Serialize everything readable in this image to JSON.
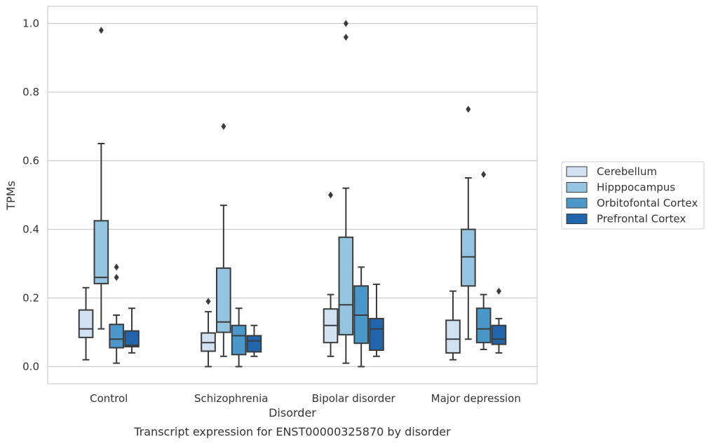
{
  "caption": "Transcript expression for ENST00000325870 by disorder",
  "chart_data": {
    "type": "box",
    "xlabel": "Disorder",
    "ylabel": "TPMs",
    "ylim": [
      -0.05,
      1.05
    ],
    "yticks": [
      0.0,
      0.2,
      0.4,
      0.6,
      0.8,
      1.0
    ],
    "ytick_labels": [
      "0.0",
      "0.2",
      "0.4",
      "0.6",
      "0.8",
      "1.0"
    ],
    "grid": "horizontal",
    "legend_position": "right",
    "categories": [
      "Control",
      "Schizophrenia",
      "Bipolar disorder",
      "Major depression"
    ],
    "series": [
      {
        "name": "Cerebellum",
        "color": "#d0e1f2",
        "boxes": [
          {
            "min": 0.02,
            "q1": 0.085,
            "median": 0.11,
            "q3": 0.165,
            "max": 0.23,
            "outliers": []
          },
          {
            "min": 0.0,
            "q1": 0.045,
            "median": 0.07,
            "q3": 0.098,
            "max": 0.16,
            "outliers": [
              0.19
            ]
          },
          {
            "min": 0.03,
            "q1": 0.07,
            "median": 0.12,
            "q3": 0.168,
            "max": 0.21,
            "outliers": [
              0.5
            ]
          },
          {
            "min": 0.02,
            "q1": 0.04,
            "median": 0.08,
            "q3": 0.135,
            "max": 0.22,
            "outliers": []
          }
        ]
      },
      {
        "name": "Hipppocampus",
        "color": "#94c4df",
        "boxes": [
          {
            "min": 0.11,
            "q1": 0.242,
            "median": 0.26,
            "q3": 0.425,
            "max": 0.65,
            "outliers": [
              0.98
            ]
          },
          {
            "min": 0.03,
            "q1": 0.1,
            "median": 0.13,
            "q3": 0.287,
            "max": 0.47,
            "outliers": [
              0.7
            ]
          },
          {
            "min": 0.01,
            "q1": 0.093,
            "median": 0.18,
            "q3": 0.377,
            "max": 0.52,
            "outliers": [
              0.96,
              1.0
            ]
          },
          {
            "min": 0.08,
            "q1": 0.235,
            "median": 0.32,
            "q3": 0.4,
            "max": 0.55,
            "outliers": [
              0.75
            ]
          }
        ]
      },
      {
        "name": "Orbitofontal Cortex",
        "color": "#4a98c9",
        "boxes": [
          {
            "min": 0.01,
            "q1": 0.055,
            "median": 0.08,
            "q3": 0.123,
            "max": 0.15,
            "outliers": [
              0.26,
              0.29
            ]
          },
          {
            "min": 0.0,
            "q1": 0.035,
            "median": 0.09,
            "q3": 0.12,
            "max": 0.17,
            "outliers": []
          },
          {
            "min": 0.0,
            "q1": 0.068,
            "median": 0.15,
            "q3": 0.235,
            "max": 0.29,
            "outliers": []
          },
          {
            "min": 0.05,
            "q1": 0.07,
            "median": 0.11,
            "q3": 0.17,
            "max": 0.21,
            "outliers": [
              0.56
            ]
          }
        ]
      },
      {
        "name": "Prefrontal Cortex",
        "color": "#2166ac",
        "boxes": [
          {
            "min": 0.04,
            "q1": 0.058,
            "median": 0.062,
            "q3": 0.104,
            "max": 0.17,
            "outliers": []
          },
          {
            "min": 0.03,
            "q1": 0.043,
            "median": 0.075,
            "q3": 0.09,
            "max": 0.12,
            "outliers": []
          },
          {
            "min": 0.03,
            "q1": 0.048,
            "median": 0.11,
            "q3": 0.14,
            "max": 0.24,
            "outliers": []
          },
          {
            "min": 0.04,
            "q1": 0.065,
            "median": 0.08,
            "q3": 0.12,
            "max": 0.14,
            "outliers": [
              0.22
            ]
          }
        ]
      }
    ]
  }
}
